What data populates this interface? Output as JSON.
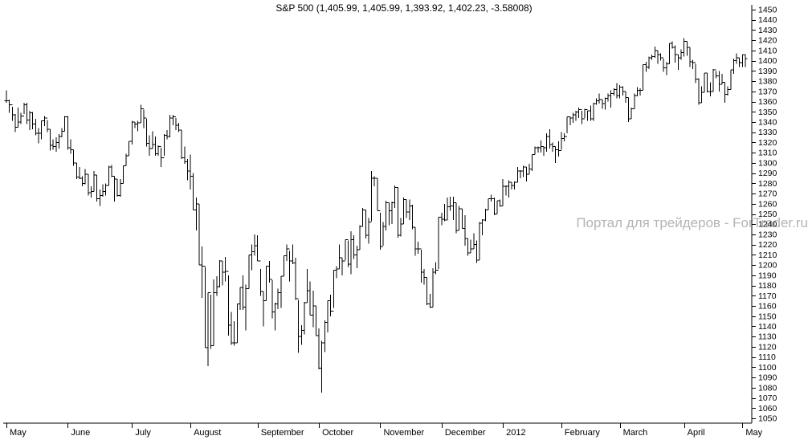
{
  "page": {
    "background": "#ffffff"
  },
  "chart_data": {
    "type": "ohlc-bar",
    "title": "S&P 500 (1,405.99, 1,405.99, 1,393.92, 1,402.23, -3.58008)",
    "watermark": "Портал для трейдеров - ForTrader.ru",
    "last_quote": {
      "open": 1405.99,
      "high": 1405.99,
      "low": 1393.92,
      "close": 1402.23,
      "change": -3.58008
    },
    "y_min": 1050,
    "y_max": 1450,
    "y_tick_step": 10,
    "grid": "off",
    "legend": "none",
    "y_axis_side": "right",
    "colors": {
      "bar": "#000000",
      "axis": "#000000",
      "tick_label": "#000000",
      "watermark": "#b4b4b4",
      "background": "#ffffff"
    },
    "x_axis_months": [
      {
        "label": "May",
        "index": 0
      },
      {
        "label": "June",
        "index": 21
      },
      {
        "label": "July",
        "index": 43
      },
      {
        "label": "August",
        "index": 63
      },
      {
        "label": "September",
        "index": 86
      },
      {
        "label": "October",
        "index": 107
      },
      {
        "label": "November",
        "index": 128
      },
      {
        "label": "December",
        "index": 149
      },
      {
        "label": "2012",
        "index": 170
      },
      {
        "label": "February",
        "index": 190
      },
      {
        "label": "March",
        "index": 210
      },
      {
        "label": "April",
        "index": 232
      },
      {
        "label": "May",
        "index": 252
      }
    ],
    "bar_format": "[high, low, close]; open tick is drawn at previous bar close",
    "bars": [
      [
        1371,
        1359,
        1361
      ],
      [
        1362,
        1349,
        1357
      ],
      [
        1355,
        1341,
        1347
      ],
      [
        1348,
        1330,
        1335
      ],
      [
        1354,
        1335,
        1340
      ],
      [
        1349,
        1338,
        1346
      ],
      [
        1359,
        1348,
        1357
      ],
      [
        1359,
        1338,
        1342
      ],
      [
        1351,
        1332,
        1349
      ],
      [
        1350,
        1333,
        1338
      ],
      [
        1343,
        1327,
        1329
      ],
      [
        1334,
        1319,
        1329
      ],
      [
        1341,
        1323,
        1341
      ],
      [
        1346,
        1336,
        1344
      ],
      [
        1342,
        1330,
        1333
      ],
      [
        1333,
        1312,
        1317
      ],
      [
        1323,
        1313,
        1316
      ],
      [
        1325,
        1311,
        1320
      ],
      [
        1328,
        1314,
        1326
      ],
      [
        1334,
        1325,
        1331
      ],
      [
        1346,
        1331,
        1345
      ],
      [
        1346,
        1313,
        1315
      ],
      [
        1323,
        1309,
        1313
      ],
      [
        1313,
        1297,
        1300
      ],
      [
        1300,
        1284,
        1286
      ],
      [
        1296,
        1284,
        1285
      ],
      [
        1287,
        1277,
        1280
      ],
      [
        1294,
        1279,
        1289
      ],
      [
        1289,
        1268,
        1271
      ],
      [
        1277,
        1266,
        1272
      ],
      [
        1292,
        1272,
        1288
      ],
      [
        1288,
        1262,
        1265
      ],
      [
        1274,
        1258,
        1268
      ],
      [
        1279,
        1267,
        1272
      ],
      [
        1280,
        1268,
        1278
      ],
      [
        1297,
        1278,
        1296
      ],
      [
        1298,
        1286,
        1287
      ],
      [
        1287,
        1262,
        1284
      ],
      [
        1284,
        1267,
        1268
      ],
      [
        1284,
        1267,
        1280
      ],
      [
        1297,
        1280,
        1297
      ],
      [
        1309,
        1297,
        1307
      ],
      [
        1321,
        1307,
        1321
      ],
      [
        1341,
        1318,
        1340
      ],
      [
        1340,
        1334,
        1338
      ],
      [
        1341,
        1331,
        1339
      ],
      [
        1357,
        1339,
        1353
      ],
      [
        1352,
        1334,
        1344
      ],
      [
        1343,
        1316,
        1319
      ],
      [
        1327,
        1307,
        1314
      ],
      [
        1331,
        1314,
        1318
      ],
      [
        1326,
        1307,
        1309
      ],
      [
        1317,
        1307,
        1316
      ],
      [
        1315,
        1296,
        1305
      ],
      [
        1328,
        1307,
        1327
      ],
      [
        1332,
        1323,
        1326
      ],
      [
        1347,
        1325,
        1344
      ],
      [
        1347,
        1337,
        1345
      ],
      [
        1344,
        1332,
        1337
      ],
      [
        1339,
        1330,
        1332
      ],
      [
        1332,
        1304,
        1305
      ],
      [
        1316,
        1299,
        1301
      ],
      [
        1304,
        1283,
        1292
      ],
      [
        1308,
        1274,
        1287
      ],
      [
        1290,
        1254,
        1254
      ],
      [
        1266,
        1234,
        1260
      ],
      [
        1260,
        1200,
        1200
      ],
      [
        1218,
        1168,
        1199
      ],
      [
        1198,
        1119,
        1119
      ],
      [
        1173,
        1101,
        1173
      ],
      [
        1171,
        1118,
        1121
      ],
      [
        1186,
        1121,
        1173
      ],
      [
        1189,
        1170,
        1179
      ],
      [
        1205,
        1178,
        1204
      ],
      [
        1204,
        1180,
        1193
      ],
      [
        1208,
        1184,
        1194
      ],
      [
        1190,
        1131,
        1141
      ],
      [
        1154,
        1122,
        1124
      ],
      [
        1145,
        1121,
        1124
      ],
      [
        1162,
        1124,
        1162
      ],
      [
        1178,
        1156,
        1178
      ],
      [
        1190,
        1156,
        1159
      ],
      [
        1181,
        1136,
        1177
      ],
      [
        1210,
        1177,
        1210
      ],
      [
        1220,
        1195,
        1213
      ],
      [
        1230,
        1209,
        1219
      ],
      [
        1229,
        1204,
        1204
      ],
      [
        1196,
        1170,
        1174
      ],
      [
        1174,
        1140,
        1165
      ],
      [
        1199,
        1165,
        1199
      ],
      [
        1204,
        1183,
        1186
      ],
      [
        1185,
        1148,
        1154
      ],
      [
        1163,
        1136,
        1162
      ],
      [
        1177,
        1157,
        1173
      ],
      [
        1189,
        1158,
        1189
      ],
      [
        1209,
        1189,
        1209
      ],
      [
        1220,
        1204,
        1216
      ],
      [
        1214,
        1184,
        1204
      ],
      [
        1220,
        1201,
        1202
      ],
      [
        1207,
        1166,
        1167
      ],
      [
        1166,
        1114,
        1130
      ],
      [
        1141,
        1122,
        1136
      ],
      [
        1164,
        1132,
        1163
      ],
      [
        1196,
        1163,
        1175
      ],
      [
        1184,
        1151,
        1151
      ],
      [
        1175,
        1139,
        1160
      ],
      [
        1160,
        1131,
        1131
      ],
      [
        1138,
        1098,
        1099
      ],
      [
        1126,
        1075,
        1124
      ],
      [
        1146,
        1115,
        1144
      ],
      [
        1165,
        1134,
        1165
      ],
      [
        1171,
        1150,
        1155
      ],
      [
        1195,
        1158,
        1195
      ],
      [
        1199,
        1187,
        1196
      ],
      [
        1220,
        1196,
        1207
      ],
      [
        1207,
        1190,
        1204
      ],
      [
        1225,
        1205,
        1225
      ],
      [
        1224,
        1198,
        1201
      ],
      [
        1233,
        1191,
        1225
      ],
      [
        1229,
        1206,
        1210
      ],
      [
        1219,
        1197,
        1215
      ],
      [
        1239,
        1215,
        1238
      ],
      [
        1256,
        1238,
        1254
      ],
      [
        1254,
        1226,
        1229
      ],
      [
        1246,
        1221,
        1242
      ],
      [
        1292,
        1243,
        1285
      ],
      [
        1287,
        1277,
        1285
      ],
      [
        1285,
        1253,
        1253
      ],
      [
        1251,
        1215,
        1218
      ],
      [
        1242,
        1219,
        1238
      ],
      [
        1263,
        1234,
        1261
      ],
      [
        1261,
        1239,
        1253
      ],
      [
        1262,
        1240,
        1261
      ],
      [
        1278,
        1256,
        1276
      ],
      [
        1276,
        1227,
        1229
      ],
      [
        1246,
        1228,
        1240
      ],
      [
        1266,
        1240,
        1264
      ],
      [
        1264,
        1246,
        1252
      ],
      [
        1264,
        1244,
        1258
      ],
      [
        1259,
        1235,
        1237
      ],
      [
        1237,
        1209,
        1216
      ],
      [
        1223,
        1211,
        1216
      ],
      [
        1215,
        1183,
        1193
      ],
      [
        1196,
        1181,
        1188
      ],
      [
        1188,
        1161,
        1162
      ],
      [
        1172,
        1158,
        1159
      ],
      [
        1197,
        1159,
        1193
      ],
      [
        1203,
        1191,
        1195
      ],
      [
        1247,
        1196,
        1247
      ],
      [
        1251,
        1239,
        1245
      ],
      [
        1260,
        1243,
        1244
      ],
      [
        1266,
        1244,
        1257
      ],
      [
        1267,
        1253,
        1258
      ],
      [
        1267,
        1244,
        1261
      ],
      [
        1261,
        1231,
        1234
      ],
      [
        1258,
        1234,
        1255
      ],
      [
        1255,
        1236,
        1236
      ],
      [
        1249,
        1219,
        1226
      ],
      [
        1226,
        1209,
        1212
      ],
      [
        1225,
        1212,
        1216
      ],
      [
        1231,
        1216,
        1220
      ],
      [
        1224,
        1202,
        1205
      ],
      [
        1242,
        1205,
        1241
      ],
      [
        1245,
        1229,
        1244
      ],
      [
        1255,
        1243,
        1254
      ],
      [
        1265,
        1254,
        1265
      ],
      [
        1269,
        1262,
        1265
      ],
      [
        1266,
        1249,
        1250
      ],
      [
        1263,
        1250,
        1263
      ],
      [
        1264,
        1257,
        1258
      ],
      [
        1284,
        1258,
        1277
      ],
      [
        1278,
        1268,
        1277
      ],
      [
        1283,
        1266,
        1281
      ],
      [
        1281,
        1274,
        1278
      ],
      [
        1282,
        1274,
        1281
      ],
      [
        1296,
        1281,
        1292
      ],
      [
        1293,
        1285,
        1292
      ],
      [
        1297,
        1286,
        1296
      ],
      [
        1296,
        1282,
        1289
      ],
      [
        1299,
        1289,
        1294
      ],
      [
        1308,
        1292,
        1308
      ],
      [
        1316,
        1308,
        1315
      ],
      [
        1316,
        1310,
        1315
      ],
      [
        1322,
        1310,
        1316
      ],
      [
        1316,
        1307,
        1315
      ],
      [
        1329,
        1311,
        1326
      ],
      [
        1333,
        1314,
        1318
      ],
      [
        1320,
        1311,
        1316
      ],
      [
        1316,
        1300,
        1313
      ],
      [
        1321,
        1306,
        1312
      ],
      [
        1330,
        1313,
        1324
      ],
      [
        1329,
        1321,
        1326
      ],
      [
        1345,
        1329,
        1345
      ],
      [
        1345,
        1337,
        1344
      ],
      [
        1349,
        1339,
        1347
      ],
      [
        1351,
        1341,
        1350
      ],
      [
        1354,
        1344,
        1352
      ],
      [
        1351,
        1338,
        1343
      ],
      [
        1353,
        1344,
        1352
      ],
      [
        1351,
        1341,
        1351
      ],
      [
        1356,
        1341,
        1343
      ],
      [
        1359,
        1341,
        1358
      ],
      [
        1363,
        1357,
        1361
      ],
      [
        1368,
        1358,
        1362
      ],
      [
        1362,
        1353,
        1358
      ],
      [
        1364,
        1352,
        1363
      ],
      [
        1368,
        1360,
        1366
      ],
      [
        1371,
        1354,
        1368
      ],
      [
        1373,
        1366,
        1372
      ],
      [
        1378,
        1363,
        1366
      ],
      [
        1376,
        1363,
        1374
      ],
      [
        1375,
        1366,
        1370
      ],
      [
        1370,
        1359,
        1364
      ],
      [
        1364,
        1340,
        1343
      ],
      [
        1354,
        1343,
        1353
      ],
      [
        1368,
        1353,
        1366
      ],
      [
        1374,
        1365,
        1371
      ],
      [
        1373,
        1366,
        1371
      ],
      [
        1396,
        1371,
        1396
      ],
      [
        1399,
        1389,
        1394
      ],
      [
        1404,
        1392,
        1403
      ],
      [
        1406,
        1401,
        1404
      ],
      [
        1414,
        1403,
        1410
      ],
      [
        1410,
        1397,
        1406
      ],
      [
        1407,
        1400,
        1403
      ],
      [
        1402,
        1389,
        1393
      ],
      [
        1399,
        1386,
        1397
      ],
      [
        1417,
        1397,
        1417
      ],
      [
        1419,
        1412,
        1413
      ],
      [
        1415,
        1398,
        1406
      ],
      [
        1406,
        1391,
        1403
      ],
      [
        1411,
        1401,
        1408
      ],
      [
        1422,
        1404,
        1419
      ],
      [
        1419,
        1405,
        1413
      ],
      [
        1413,
        1394,
        1399
      ],
      [
        1401,
        1392,
        1398
      ],
      [
        1397,
        1378,
        1382
      ],
      [
        1383,
        1357,
        1359
      ],
      [
        1375,
        1359,
        1369
      ],
      [
        1388,
        1369,
        1388
      ],
      [
        1388,
        1369,
        1370
      ],
      [
        1379,
        1365,
        1370
      ],
      [
        1392,
        1370,
        1391
      ],
      [
        1390,
        1383,
        1385
      ],
      [
        1390,
        1370,
        1377
      ],
      [
        1387,
        1377,
        1379
      ],
      [
        1379,
        1359,
        1367
      ],
      [
        1375,
        1366,
        1372
      ],
      [
        1391,
        1372,
        1391
      ],
      [
        1402,
        1387,
        1400
      ],
      [
        1407,
        1397,
        1403
      ],
      [
        1403,
        1394,
        1398
      ],
      [
        1406,
        1394,
        1406
      ],
      [
        1406,
        1394,
        1402
      ]
    ]
  }
}
